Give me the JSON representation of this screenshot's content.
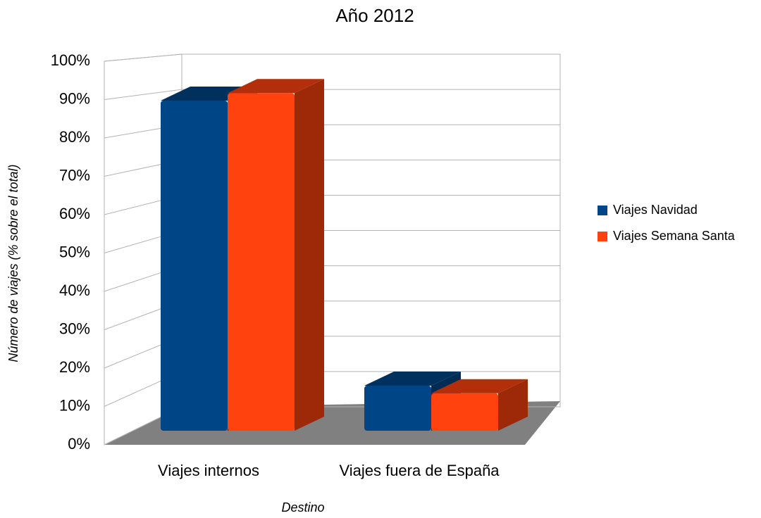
{
  "chart_data": {
    "type": "bar3d",
    "title": "Año 2012",
    "x_label": "Destino",
    "y_label": "Número de viajes (% sobre el total)",
    "categories": [
      "Viajes internos",
      "Viajes fuera de España"
    ],
    "series": [
      {
        "name": "Viajes Navidad",
        "color": "#004586",
        "values": [
          88,
          12
        ]
      },
      {
        "name": "Viajes Semana Santa",
        "color": "#ff420e",
        "values": [
          90,
          10
        ]
      }
    ],
    "ylim": [
      0,
      100
    ],
    "yticks": [
      {
        "value": 0,
        "label": "0%"
      },
      {
        "value": 10,
        "label": "10%"
      },
      {
        "value": 20,
        "label": "20%"
      },
      {
        "value": 30,
        "label": "30%"
      },
      {
        "value": 40,
        "label": "40%"
      },
      {
        "value": 50,
        "label": "50%"
      },
      {
        "value": 60,
        "label": "60%"
      },
      {
        "value": 70,
        "label": "70%"
      },
      {
        "value": 80,
        "label": "80%"
      },
      {
        "value": 90,
        "label": "90%"
      },
      {
        "value": 100,
        "label": "100%"
      }
    ],
    "grid": true
  }
}
